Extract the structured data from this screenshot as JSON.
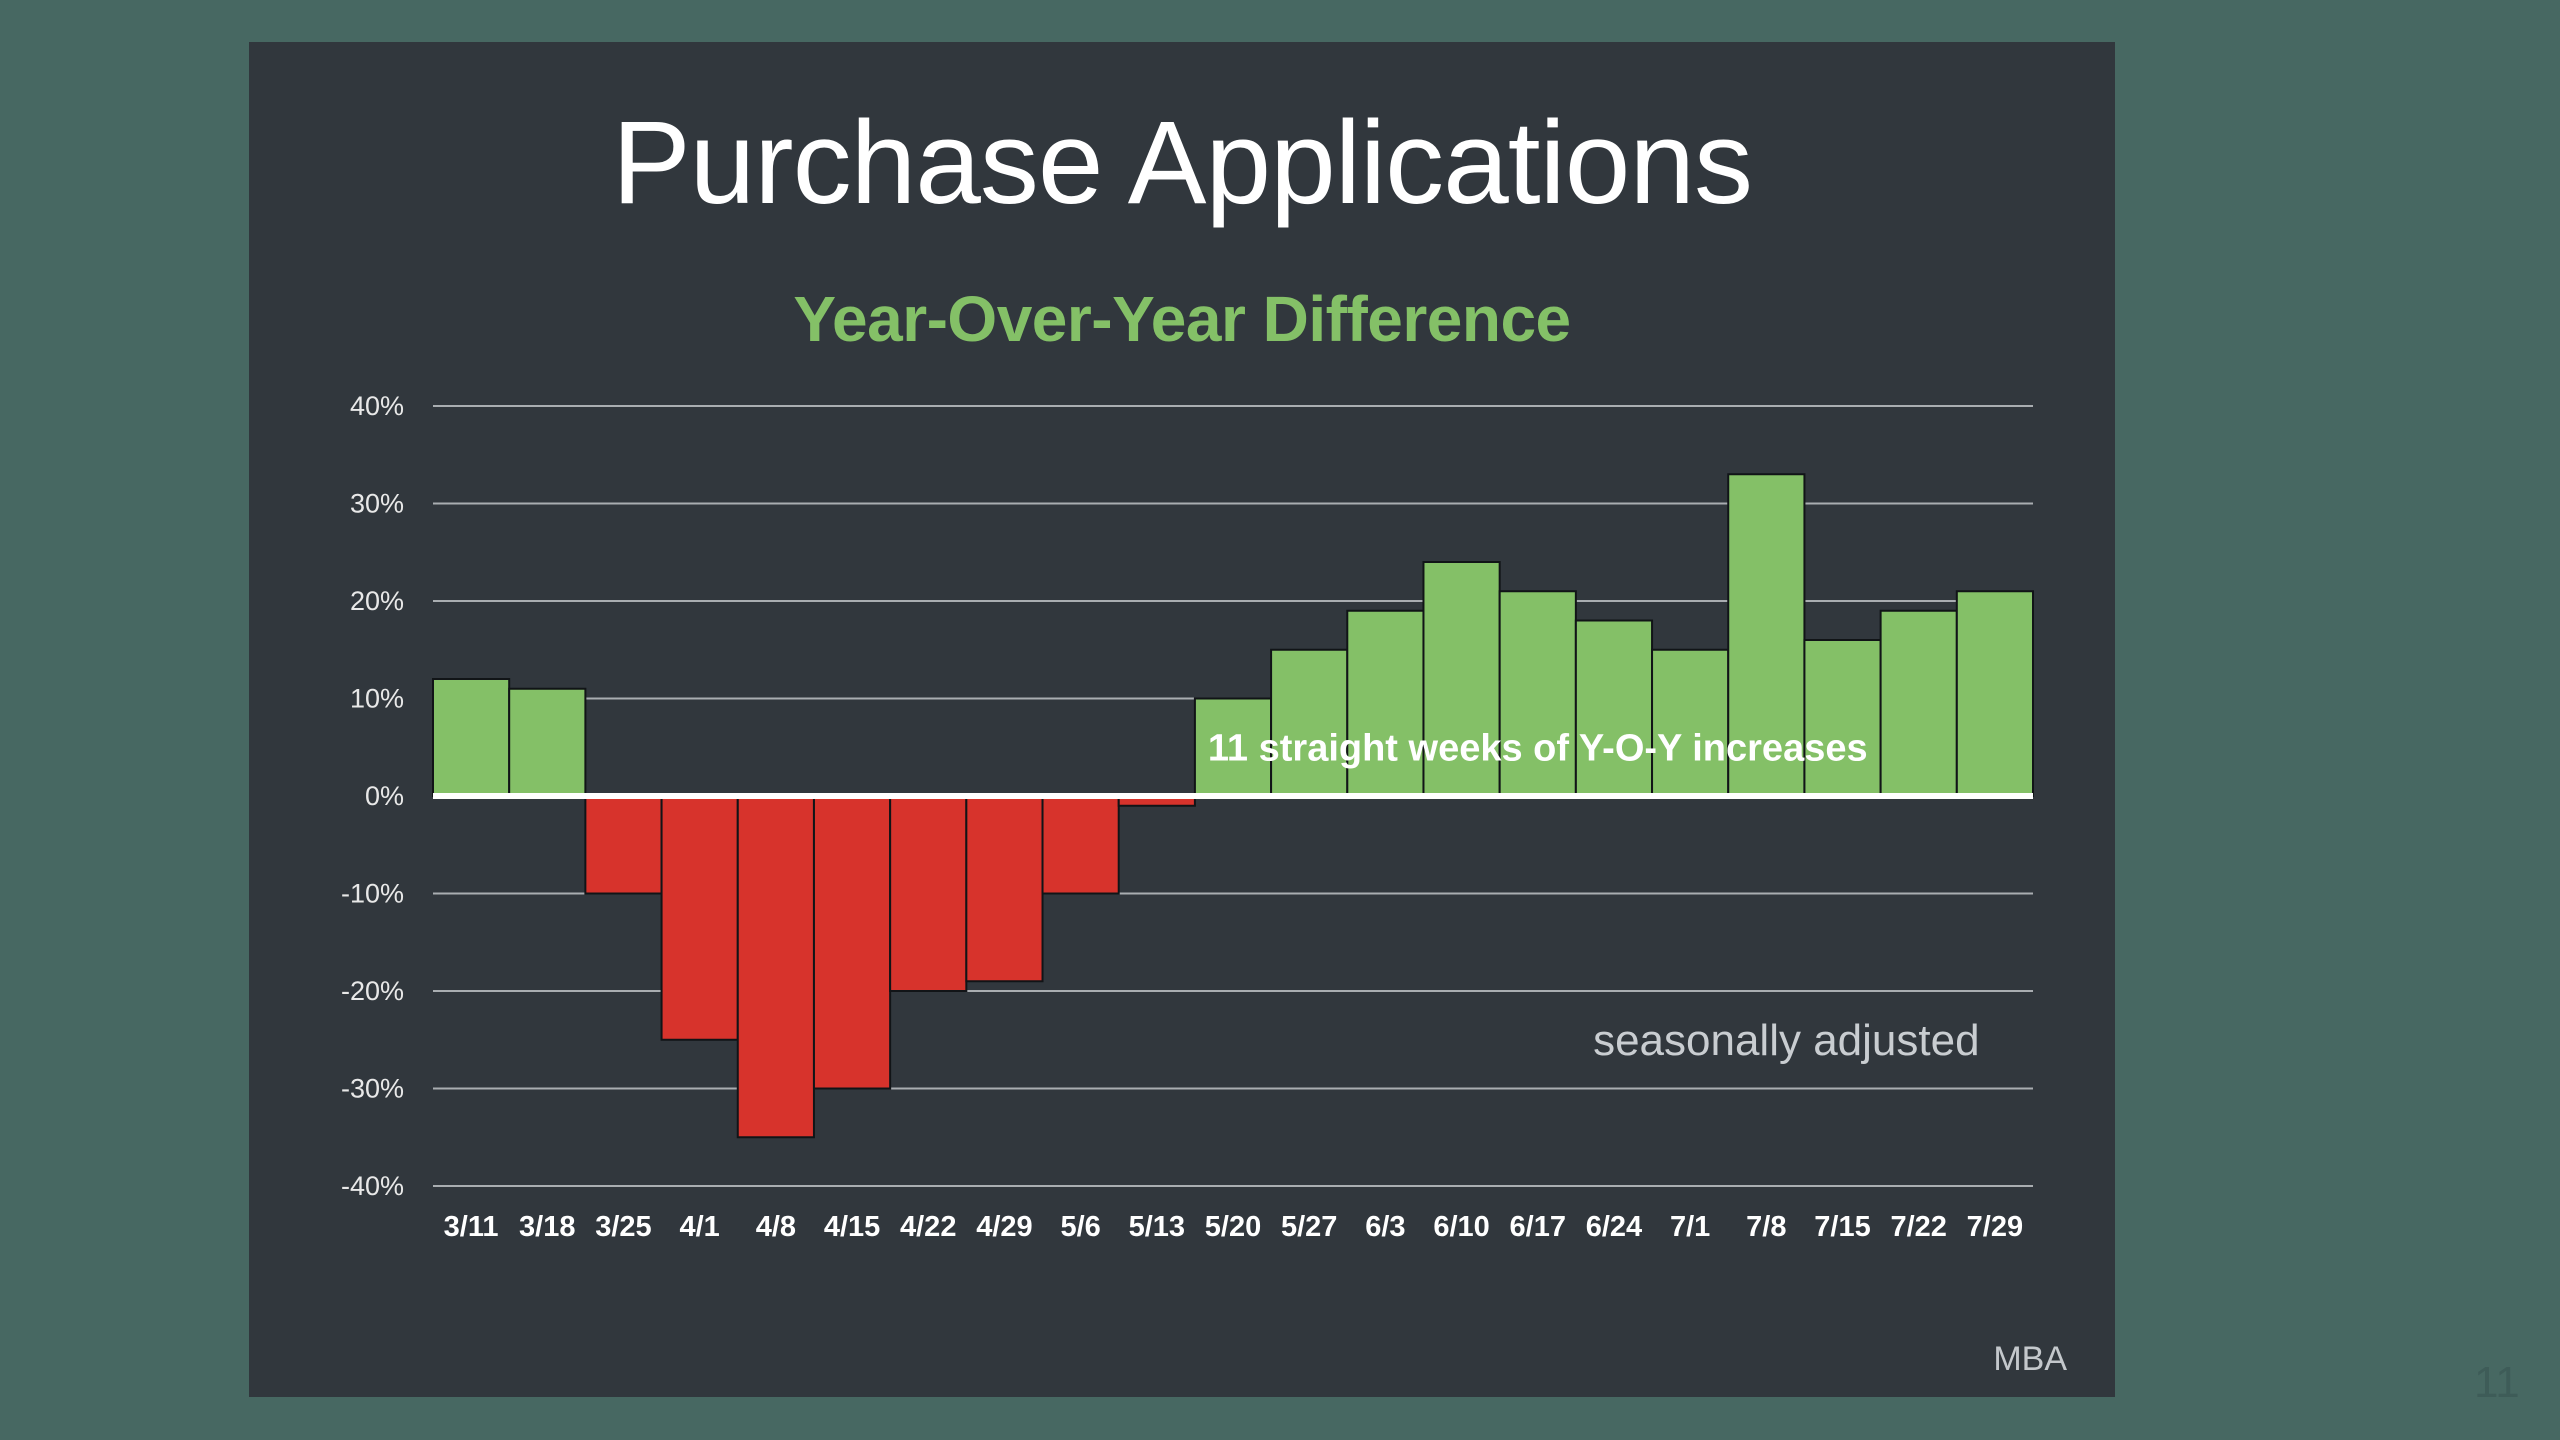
{
  "page": {
    "number": "11"
  },
  "chart_data": {
    "type": "bar",
    "title": "Purchase Applications",
    "subtitle": "Year-Over-Year Difference",
    "xlabel": "",
    "ylabel": "",
    "categories": [
      "3/11",
      "3/18",
      "3/25",
      "4/1",
      "4/8",
      "4/15",
      "4/22",
      "4/29",
      "5/6",
      "5/13",
      "5/20",
      "5/27",
      "6/3",
      "6/10",
      "6/17",
      "6/24",
      "7/1",
      "7/8",
      "7/15",
      "7/22",
      "7/29"
    ],
    "values": [
      12,
      11,
      -10,
      -25,
      -35,
      -30,
      -20,
      -19,
      -10,
      -1,
      10,
      15,
      19,
      24,
      21,
      18,
      15,
      33,
      16,
      19,
      21
    ],
    "ylim": [
      -40,
      40
    ],
    "yticks": [
      40,
      30,
      20,
      10,
      0,
      -10,
      -20,
      -30,
      -40
    ],
    "ytick_labels": [
      "40%",
      "30%",
      "20%",
      "10%",
      "0%",
      "-10%",
      "-20%",
      "-30%",
      "-40%"
    ],
    "grid": true,
    "legend": "none",
    "colors": {
      "positive": "#84c067",
      "negative": "#d7332c",
      "title": "#ffffff",
      "subtitle": "#84c067",
      "background": "#31373d",
      "frame": "#476862"
    },
    "annotations": [
      {
        "text": "11 straight weeks of Y-O-Y increases",
        "x": "6/17",
        "y": 5
      },
      {
        "text": "seasonally adjusted",
        "x": "7/8",
        "y": -25
      }
    ],
    "source": "MBA"
  }
}
